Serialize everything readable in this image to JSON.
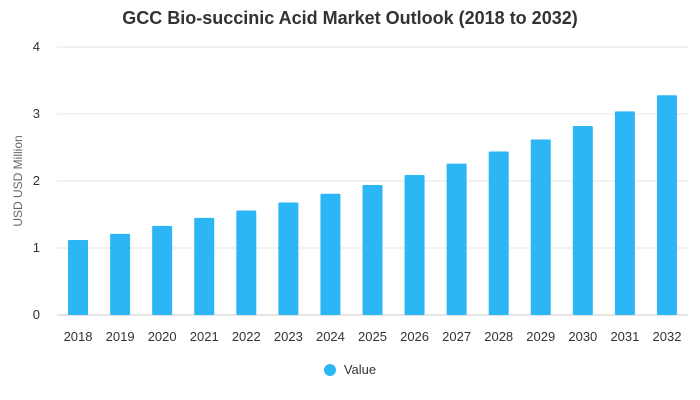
{
  "chart_data": {
    "type": "bar",
    "title": "GCC Bio-succinic Acid Market Outlook (2018 to 2032)",
    "xlabel": "",
    "ylabel": "USD USD Million",
    "categories": [
      "2018",
      "2019",
      "2020",
      "2021",
      "2022",
      "2023",
      "2024",
      "2025",
      "2026",
      "2027",
      "2028",
      "2029",
      "2030",
      "2031",
      "2032"
    ],
    "series": [
      {
        "name": "Value",
        "values": [
          1.12,
          1.21,
          1.33,
          1.45,
          1.56,
          1.68,
          1.81,
          1.94,
          2.09,
          2.26,
          2.44,
          2.62,
          2.82,
          3.04,
          3.28
        ]
      }
    ],
    "ylim": [
      0,
      4
    ],
    "yticks": [
      0,
      1,
      2,
      3,
      4
    ],
    "grid": true,
    "legend_position": "bottom-center",
    "bar_color": "#2db6f5",
    "grid_color": "#e6e6e6"
  }
}
